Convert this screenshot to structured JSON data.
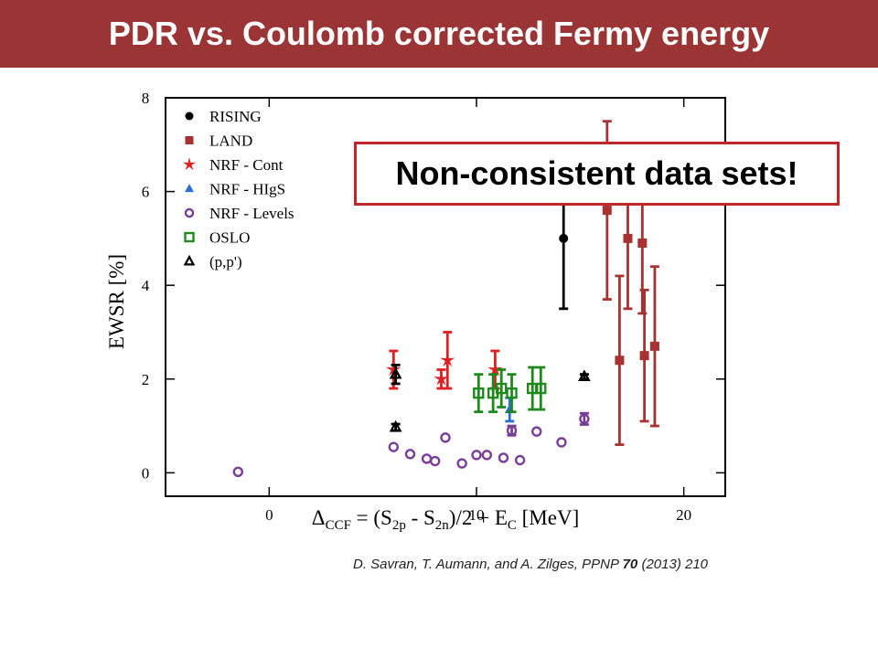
{
  "slide": {
    "title": "PDR vs. Coulomb corrected Fermy energy",
    "callout": "Non-consistent data sets!",
    "citation": {
      "authors": "D. Savran, T. Aumann, and A. Zilges,  PPNP ",
      "volume": "70",
      "rest": " (2013) 210"
    }
  },
  "chart_data": {
    "type": "scatter",
    "title": "",
    "xlabel": {
      "delta": "Δ",
      "sub_ccf": "CCF",
      "eq_open": " = (S",
      "sub_2p": "2p",
      "minus": " - S",
      "sub_2n": "2n",
      "half": ")/2 + E",
      "sub_c": "C",
      "unit": " [MeV]"
    },
    "ylabel": "EWSR [%]",
    "xlim": [
      -5,
      22
    ],
    "ylim": [
      -0.5,
      8
    ],
    "xticks": [
      0,
      10,
      20
    ],
    "yticks": [
      0,
      2,
      4,
      6,
      8
    ],
    "grid": false,
    "legend_position": "top-left",
    "series": [
      {
        "name": "RISING",
        "marker": "circle-filled",
        "color": "#000000",
        "points": [
          {
            "x": 14.2,
            "y": 5.0,
            "err": 1.5
          }
        ]
      },
      {
        "name": "LAND",
        "marker": "square-filled",
        "color": "#a83232",
        "points": [
          {
            "x": 16.3,
            "y": 5.6,
            "err": 1.9
          },
          {
            "x": 16.9,
            "y": 2.4,
            "err": 1.8
          },
          {
            "x": 17.3,
            "y": 5.0,
            "err": 1.5
          },
          {
            "x": 18.0,
            "y": 4.9,
            "err": 1.5
          },
          {
            "x": 18.1,
            "y": 2.5,
            "err": 1.4
          },
          {
            "x": 18.6,
            "y": 2.7,
            "err": 1.7
          }
        ]
      },
      {
        "name": "NRF - Cont",
        "marker": "star",
        "color": "#e02020",
        "points": [
          {
            "x": 6.0,
            "y": 2.2,
            "err": 0.4
          },
          {
            "x": 8.3,
            "y": 2.0,
            "err": 0.2
          },
          {
            "x": 8.6,
            "y": 2.4,
            "err": 0.6
          },
          {
            "x": 10.9,
            "y": 2.2,
            "err": 0.4
          }
        ]
      },
      {
        "name": "NRF - HIgS",
        "marker": "triangle-filled",
        "color": "#2a6fd6",
        "points": [
          {
            "x": 11.6,
            "y": 1.35,
            "err": 0.25
          }
        ]
      },
      {
        "name": "NRF - Levels",
        "marker": "circle-open",
        "color": "#7a3e98",
        "points": [
          {
            "x": -1.5,
            "y": 0.02,
            "err": 0
          },
          {
            "x": 6.0,
            "y": 0.55,
            "err": 0
          },
          {
            "x": 6.8,
            "y": 0.4,
            "err": 0
          },
          {
            "x": 7.6,
            "y": 0.3,
            "err": 0
          },
          {
            "x": 8.0,
            "y": 0.25,
            "err": 0
          },
          {
            "x": 8.5,
            "y": 0.75,
            "err": 0
          },
          {
            "x": 9.3,
            "y": 0.2,
            "err": 0
          },
          {
            "x": 10.0,
            "y": 0.38,
            "err": 0
          },
          {
            "x": 10.5,
            "y": 0.38,
            "err": 0
          },
          {
            "x": 11.3,
            "y": 0.32,
            "err": 0
          },
          {
            "x": 11.7,
            "y": 0.9,
            "err": 0.1
          },
          {
            "x": 12.1,
            "y": 0.27,
            "err": 0
          },
          {
            "x": 12.9,
            "y": 0.88,
            "err": 0
          },
          {
            "x": 14.1,
            "y": 0.65,
            "err": 0
          },
          {
            "x": 15.2,
            "y": 1.15,
            "err": 0.12
          }
        ]
      },
      {
        "name": "OSLO",
        "marker": "square-open",
        "color": "#1e8a1e",
        "points": [
          {
            "x": 10.1,
            "y": 1.7,
            "err": 0.4
          },
          {
            "x": 10.8,
            "y": 1.7,
            "err": 0.4
          },
          {
            "x": 11.2,
            "y": 1.8,
            "err": 0.4
          },
          {
            "x": 11.7,
            "y": 1.7,
            "err": 0.4
          },
          {
            "x": 12.7,
            "y": 1.8,
            "err": 0.45
          },
          {
            "x": 13.1,
            "y": 1.8,
            "err": 0.45
          }
        ]
      },
      {
        "name": "(p,p')",
        "marker": "triangle-open",
        "color": "#000000",
        "points": [
          {
            "x": 6.1,
            "y": 2.1,
            "err": 0.2
          },
          {
            "x": 6.1,
            "y": 0.97,
            "err": 0.07
          },
          {
            "x": 15.2,
            "y": 2.05,
            "err": 0.05
          }
        ]
      }
    ]
  }
}
